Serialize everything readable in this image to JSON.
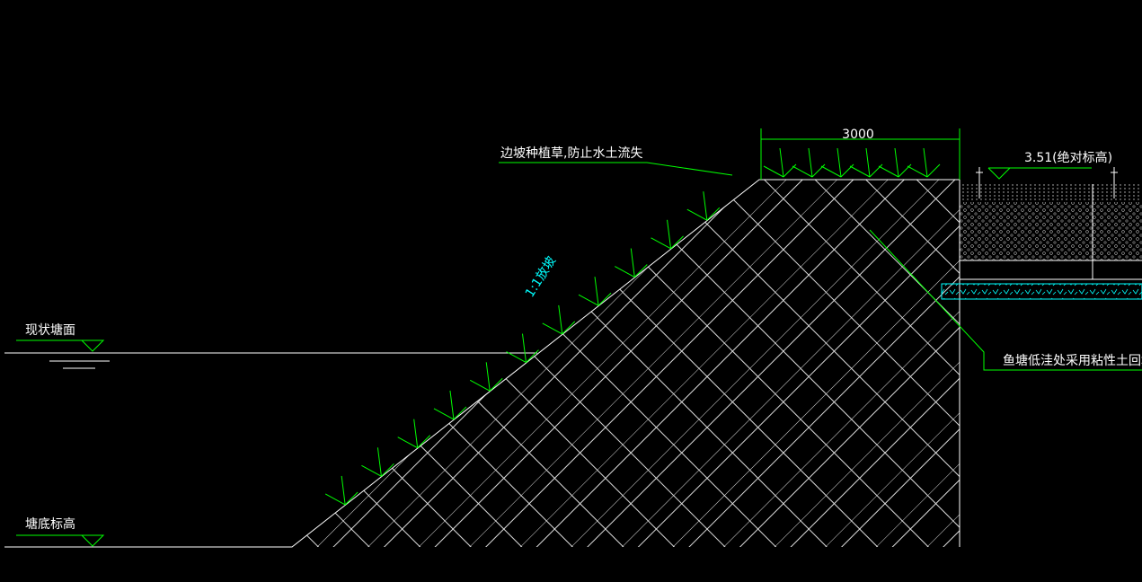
{
  "annotations": {
    "slope_planting": "边坡种植草,防止水土流失",
    "top_width": "3000",
    "top_elevation": "3.51(绝对标高)",
    "slope_ratio": "1:1放坡",
    "existing_surface": "现状塘面",
    "pond_bottom": "塘底标高",
    "backfill": "鱼塘低洼处采用粘性土回填"
  }
}
